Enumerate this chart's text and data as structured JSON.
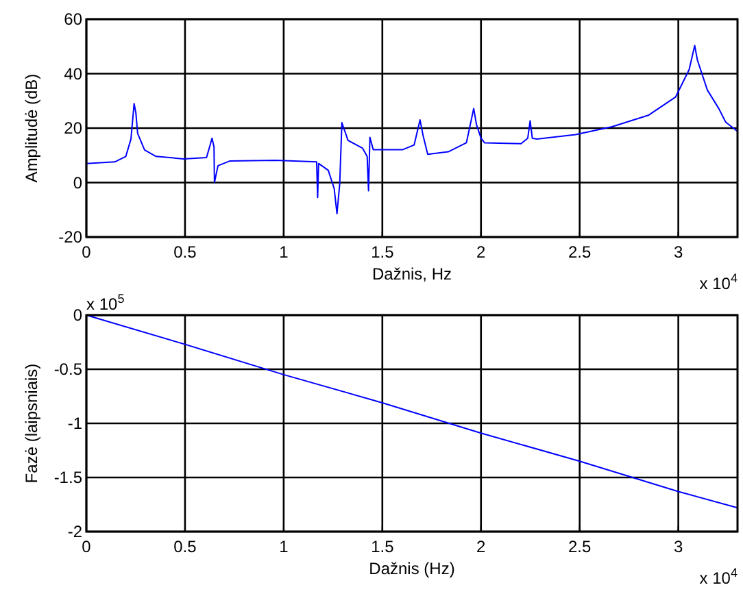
{
  "chart_data": [
    {
      "type": "line",
      "xlabel": "Dažnis, Hz",
      "ylabel": "Amplitudė  (dB)",
      "xlim": [
        0,
        3.3
      ],
      "xticks": [
        0,
        0.5,
        1,
        1.5,
        2,
        2.5,
        3
      ],
      "ylim": [
        -20,
        60
      ],
      "yticks": [
        -20,
        0,
        20,
        40,
        60
      ],
      "grid": true,
      "annotations": [
        "x 10$^{4}$"
      ],
      "series": [
        {
          "color": "#0000ff",
          "x": [
            0,
            0.144,
            0.2,
            0.226,
            0.242,
            0.251,
            0.26,
            0.295,
            0.353,
            0.493,
            0.609,
            0.637,
            0.647,
            0.649,
            0.667,
            0.726,
            0.958,
            1.167,
            1.172,
            1.177,
            1.226,
            1.256,
            1.27,
            1.284,
            1.295,
            1.302,
            1.326,
            1.4,
            1.423,
            1.43,
            1.437,
            1.454,
            1.604,
            1.661,
            1.691,
            1.707,
            1.73,
            1.834,
            1.926,
            1.963,
            1.977,
            2.0,
            2.018,
            2.203,
            2.237,
            2.249,
            2.26,
            2.283,
            2.479,
            2.664,
            2.848,
            2.986,
            3.055,
            3.083,
            3.097,
            3.147,
            3.205,
            3.24,
            3.3
          ],
          "values": [
            7,
            7.6,
            9.6,
            16,
            29,
            25.5,
            18,
            12,
            9.6,
            8.7,
            9.2,
            16.3,
            13,
            0,
            6.2,
            7.9,
            8.2,
            7.6,
            -5.5,
            7,
            4.5,
            -2.2,
            -11.4,
            -0.5,
            22,
            20.5,
            15.5,
            12.6,
            9.6,
            -3,
            16.6,
            12.1,
            12.1,
            13.8,
            23,
            17.1,
            10.4,
            11.3,
            14.6,
            27.2,
            21.3,
            16.3,
            14.6,
            14.3,
            16.3,
            22.7,
            16.3,
            16,
            17.6,
            20.5,
            24.7,
            31.4,
            41.5,
            50.3,
            44.9,
            34,
            27.2,
            22.2,
            18.8
          ]
        }
      ]
    },
    {
      "type": "line",
      "xlabel": "Dažnis   (Hz)",
      "ylabel": "Fazė  (laipsniais)",
      "xlim": [
        0,
        3.3
      ],
      "xticks": [
        0,
        0.5,
        1,
        1.5,
        2,
        2.5,
        3
      ],
      "ylim": [
        -2,
        0
      ],
      "yticks": [
        -2,
        -1.5,
        -1,
        -0.5,
        0
      ],
      "grid": true,
      "annotations": [
        "x 10$^{5}$",
        "x 10$^{4}$"
      ],
      "series": [
        {
          "color": "#0000ff",
          "x": [
            0,
            0.5,
            1,
            1.5,
            2,
            2.5,
            3,
            3.3
          ],
          "values": [
            0,
            -0.27,
            -0.55,
            -0.81,
            -1.09,
            -1.35,
            -1.63,
            -1.78
          ]
        }
      ]
    }
  ]
}
